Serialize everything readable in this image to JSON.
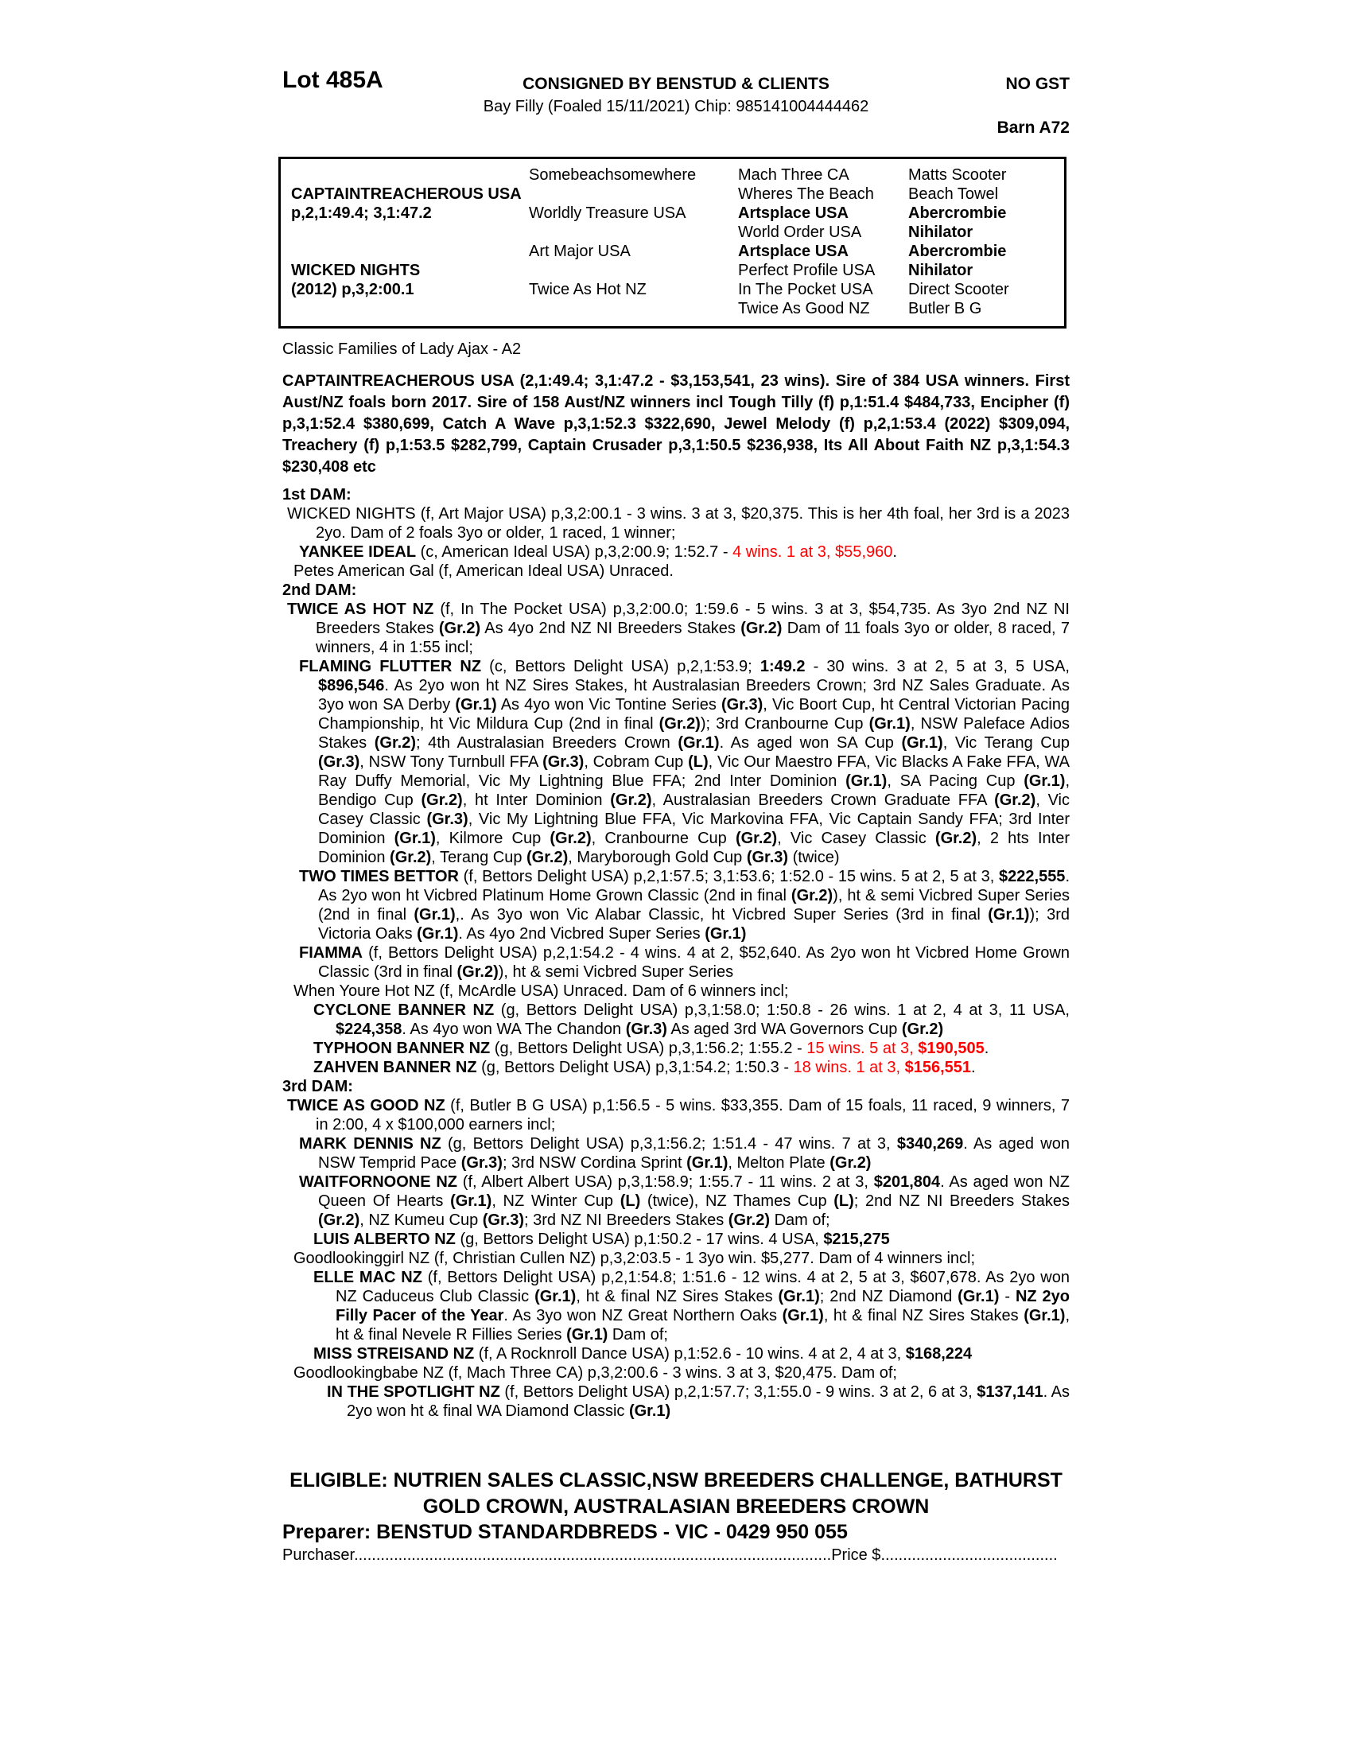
{
  "header": {
    "lot": "Lot 485A",
    "consignor": "CONSIGNED BY BENSTUD & CLIENTS",
    "gst": "NO GST",
    "foal_info": "Bay Filly (Foaled 15/11/2021) Chip: 985141004444462",
    "barn": "Barn A72"
  },
  "pedigree": {
    "rows": [
      [
        "",
        "Somebeachsomewhere",
        "Mach Three CA",
        "Matts Scooter"
      ],
      [
        "**CAPTAINTREACHEROUS USA**",
        "",
        "Wheres The Beach",
        "Beach Towel"
      ],
      [
        "**p,2,1:49.4; 3,1:47.2**",
        "Worldly Treasure USA",
        "**Artsplace USA**",
        "**Abercrombie**"
      ],
      [
        "",
        "",
        "World Order USA",
        "**Nihilator**"
      ],
      [
        "",
        "Art Major USA",
        "**Artsplace USA**",
        "**Abercrombie**"
      ],
      [
        "**WICKED NIGHTS**",
        "",
        "Perfect Profile USA",
        "**Nihilator**"
      ],
      [
        "**(2012) p,3,2:00.1**",
        "Twice As Hot NZ",
        "In The Pocket USA",
        "Direct Scooter"
      ],
      [
        "",
        "",
        "Twice As Good NZ",
        "Butler B G"
      ]
    ]
  },
  "family_line": "Classic Families of Lady Ajax - A2",
  "sire_summary": "CAPTAINTREACHEROUS USA (2,1:49.4; 3,1:47.2 - $3,153,541, 23 wins). Sire of 384 USA winners. First Aust/NZ foals born 2017. Sire of 158 Aust/NZ winners incl Tough Tilly (f) p,1:51.4 $484,733, Encipher (f) p,3,1:52.4 $380,699, Catch A Wave p,3,1:52.3 $322,690, Jewel Melody (f) p,2,1:53.4 (2022) $309,094, Treachery (f) p,1:53.5 $282,799, Captain Crusader p,3,1:50.5 $236,938, Its All About Faith NZ p,3,1:54.3 $230,408 etc",
  "dams": [
    {
      "level": "heading",
      "text": "1st DAM:"
    },
    {
      "level": "dam",
      "text": "WICKED NIGHTS (f, Art Major USA) p,3,2:00.1 - 3 wins. 3 at 3, $20,375. This is her 4th foal, her 3rd is a 2023 2yo. Dam of 2 foals 3yo or older, 1 raced, 1 winner;"
    },
    {
      "level": "p1",
      "text": "**YANKEE IDEAL** (c, American Ideal USA) p,3,2:00.9; 1:52.7 - {r}4 wins. 1 at 3, $55,960{/r}."
    },
    {
      "level": "p1x",
      "text": "Petes American Gal (f, American Ideal USA) Unraced."
    },
    {
      "level": "heading",
      "text": "2nd DAM:"
    },
    {
      "level": "dam",
      "text": "**TWICE AS HOT NZ** (f, In The Pocket USA) p,3,2:00.0; 1:59.6 - 5 wins. 3 at 3, $54,735. As 3yo 2nd NZ NI Breeders Stakes **(Gr.2)** As 4yo 2nd NZ NI Breeders Stakes **(Gr.2)** Dam of 11 foals 3yo or older, 8 raced, 7 winners, 4 in 1:55 incl;"
    },
    {
      "level": "p1",
      "text": "**FLAMING FLUTTER NZ** (c, Bettors Delight USA) p,2,1:53.9; **1:49.2** - 30 wins. 3 at 2, 5 at 3, 5 USA, **$896,546**. As 2yo won ht NZ Sires Stakes, ht Australasian Breeders Crown; 3rd NZ Sales Graduate. As 3yo won SA Derby **(Gr.1)** As 4yo won Vic Tontine Series **(Gr.3)**, Vic Boort Cup, ht Central Victorian Pacing Championship, ht Vic Mildura Cup (2nd in final **(Gr.2)**); 3rd Cranbourne Cup **(Gr.1)**, NSW Paleface Adios Stakes **(Gr.2)**; 4th Australasian Breeders Crown **(Gr.1)**. As aged won SA Cup **(Gr.1)**, Vic Terang Cup **(Gr.3)**, NSW Tony Turnbull FFA **(Gr.3)**, Cobram Cup **(L)**, Vic Our Maestro FFA, Vic Blacks A Fake FFA, WA Ray Duffy Memorial, Vic My Lightning Blue FFA; 2nd Inter Dominion **(Gr.1)**, SA Pacing Cup **(Gr.1)**, Bendigo Cup **(Gr.2)**, ht Inter Dominion **(Gr.2)**, Australasian Breeders Crown Graduate FFA **(Gr.2)**, Vic Casey Classic **(Gr.3)**, Vic My Lightning Blue FFA, Vic Markovina FFA, Vic Captain Sandy FFA; 3rd Inter Dominion **(Gr.1)**, Kilmore Cup **(Gr.2)**, Cranbourne Cup **(Gr.2)**, Vic Casey Classic **(Gr.2)**, 2 hts Inter Dominion **(Gr.2)**, Terang Cup **(Gr.2)**, Maryborough Gold Cup **(Gr.3)** (twice)"
    },
    {
      "level": "p1",
      "text": "**TWO TIMES BETTOR** (f, Bettors Delight USA) p,2,1:57.5; 3,1:53.6; 1:52.0 - 15 wins. 5 at 2, 5 at 3, **$222,555**. As 2yo won ht Vicbred Platinum Home Grown Classic (2nd in final **(Gr.2)**), ht & semi Vicbred Super Series (2nd in final **(Gr.1)**,. As 3yo won Vic Alabar Classic, ht Vicbred Super Series (3rd in final **(Gr.1)**); 3rd Victoria Oaks **(Gr.1)**. As 4yo 2nd Vicbred Super Series **(Gr.1)**"
    },
    {
      "level": "p1",
      "text": "**FIAMMA** (f, Bettors Delight USA) p,2,1:54.2 - 4 wins. 4 at 2, $52,640. As 2yo won ht Vicbred Home Grown Classic (3rd in final **(Gr.2)**), ht & semi Vicbred Super Series"
    },
    {
      "level": "p1x",
      "text": "When Youre Hot NZ (f, McArdle USA) Unraced. Dam of 6 winners incl;"
    },
    {
      "level": "p2",
      "text": "**CYCLONE BANNER NZ** (g, Bettors Delight USA) p,3,1:58.0; 1:50.8 - 26 wins. 1 at 2, 4 at 3, 11 USA, **$224,358**. As 4yo won WA The Chandon **(Gr.3)** As aged 3rd WA Governors Cup **(Gr.2)**"
    },
    {
      "level": "p2",
      "text": "**TYPHOON BANNER NZ** (g, Bettors Delight USA) p,3,1:56.2; 1:55.2 - {r}15 wins. 5 at 3, **$190,505**{/r}."
    },
    {
      "level": "p2",
      "text": "**ZAHVEN BANNER NZ** (g, Bettors Delight USA) p,3,1:54.2; 1:50.3 - {r}18 wins. 1 at 3, **$156,551**{/r}."
    },
    {
      "level": "heading",
      "text": "3rd DAM:"
    },
    {
      "level": "dam",
      "text": "**TWICE AS GOOD NZ** (f, Butler B G USA) p,1:56.5 - 5 wins. $33,355. Dam of 15 foals, 11 raced, 9 winners, 7 in 2:00, 4 x $100,000 earners incl;"
    },
    {
      "level": "p1",
      "text": "**MARK DENNIS NZ** (g, Bettors Delight USA) p,3,1:56.2; 1:51.4 - 47 wins. 7 at 3, **$340,269**. As aged won NSW Temprid Pace **(Gr.3)**; 3rd NSW Cordina Sprint **(Gr.1)**, Melton Plate **(Gr.2)**"
    },
    {
      "level": "p1",
      "text": "**WAITFORNOONE NZ** (f, Albert Albert USA) p,3,1:58.9; 1:55.7 - 11 wins. 2 at 3, **$201,804**. As aged won NZ Queen Of Hearts **(Gr.1)**, NZ Winter Cup **(L)** (twice), NZ Thames Cup **(L)**; 2nd NZ NI Breeders Stakes **(Gr.2)**, NZ Kumeu Cup **(Gr.3)**; 3rd NZ NI Breeders Stakes **(Gr.2)** Dam of;"
    },
    {
      "level": "p2",
      "text": "**LUIS ALBERTO NZ** (g, Bettors Delight USA) p,1:50.2 - 17 wins. 4 USA, **$215,275**"
    },
    {
      "level": "p1x",
      "text": "Goodlookinggirl NZ (f, Christian Cullen NZ) p,3,2:03.5 - 1 3yo win. $5,277. Dam of 4 winners incl;"
    },
    {
      "level": "p2",
      "text": "**ELLE MAC NZ** (f, Bettors Delight USA) p,2,1:54.8; 1:51.6 - 12 wins. 4 at 2, 5 at 3, $607,678. As 2yo won NZ Caduceus Club Classic **(Gr.1)**, ht & final NZ Sires Stakes **(Gr.1)**; 2nd NZ Diamond **(Gr.1)** - **NZ 2yo Filly Pacer of the Year**. As 3yo won NZ Great Northern Oaks **(Gr.1)**, ht & final NZ Sires Stakes **(Gr.1)**, ht & final Nevele R Fillies Series **(Gr.1)** Dam of;"
    },
    {
      "level": "p2",
      "text": "**MISS STREISAND NZ** (f, A Rocknroll Dance USA) p,1:52.6 - 10 wins. 4 at 2, 4 at 3, **$168,224**"
    },
    {
      "level": "p1x",
      "text": "Goodlookingbabe NZ (f, Mach Three CA) p,3,2:00.6 - 3 wins. 3 at 3, $20,475. Dam of;"
    },
    {
      "level": "p3",
      "text": "**IN THE SPOTLIGHT NZ** (f, Bettors Delight USA) p,2,1:57.7; 3,1:55.0 - 9 wins. 3 at 2, 6 at 3, **$137,141**. As 2yo won ht & final WA Diamond Classic **(Gr.1)**"
    }
  ],
  "eligible": {
    "line1": "ELIGIBLE: NUTRIEN SALES CLASSIC,NSW BREEDERS CHALLENGE, BATHURST",
    "line2": "GOLD CROWN, AUSTRALASIAN BREEDERS CROWN"
  },
  "preparer": "Preparer: BENSTUD STANDARDBREDS - VIC - 0429 950 055",
  "purchaser": {
    "label": "Purchaser",
    "dots1": "............................................................................................................",
    "price_label": "Price $",
    "dots2": "........................................"
  },
  "colors": {
    "accent_red": "#ff0000",
    "text": "#000000",
    "paper": "#ffffff"
  }
}
